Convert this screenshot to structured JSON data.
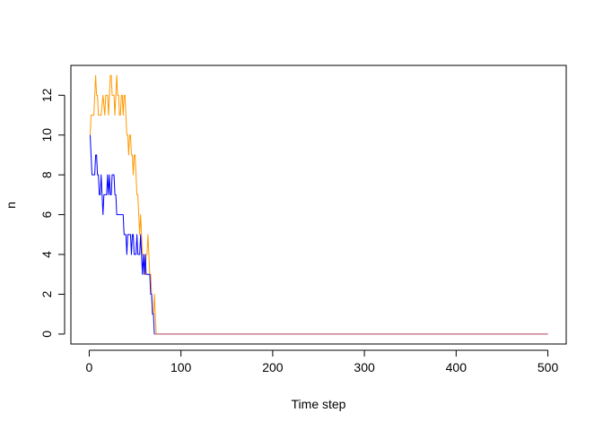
{
  "chart_data": {
    "type": "line",
    "title": "",
    "xlabel": "Time step",
    "ylabel": "n",
    "xlim": [
      -20,
      520
    ],
    "ylim": [
      -0.5,
      13.5
    ],
    "x_ticks": [
      0,
      100,
      200,
      300,
      400,
      500
    ],
    "y_ticks": [
      0,
      2,
      4,
      6,
      8,
      10,
      12
    ],
    "grid": false,
    "legend": "none",
    "series": [
      {
        "color": "#ff9900",
        "points": [
          [
            1,
            10
          ],
          [
            2,
            11
          ],
          [
            4,
            11
          ],
          [
            5,
            11
          ],
          [
            6,
            12
          ],
          [
            7,
            13
          ],
          [
            8,
            12
          ],
          [
            9,
            12
          ],
          [
            10,
            11
          ],
          [
            12,
            11
          ],
          [
            13,
            11
          ],
          [
            15,
            12
          ],
          [
            17,
            11
          ],
          [
            18,
            12
          ],
          [
            20,
            12
          ],
          [
            21,
            11
          ],
          [
            22,
            12
          ],
          [
            23,
            13
          ],
          [
            24,
            13
          ],
          [
            25,
            12
          ],
          [
            26,
            12
          ],
          [
            27,
            12
          ],
          [
            28,
            11
          ],
          [
            29,
            12
          ],
          [
            30,
            13
          ],
          [
            31,
            12
          ],
          [
            32,
            12
          ],
          [
            33,
            11
          ],
          [
            34,
            11
          ],
          [
            35,
            12
          ],
          [
            36,
            12
          ],
          [
            37,
            11
          ],
          [
            38,
            12
          ],
          [
            39,
            12
          ],
          [
            40,
            11
          ],
          [
            41,
            10
          ],
          [
            42,
            10
          ],
          [
            43,
            9
          ],
          [
            44,
            10
          ],
          [
            45,
            10
          ],
          [
            46,
            9
          ],
          [
            47,
            9
          ],
          [
            48,
            8
          ],
          [
            49,
            9
          ],
          [
            50,
            9
          ],
          [
            51,
            8
          ],
          [
            52,
            7
          ],
          [
            53,
            7
          ],
          [
            54,
            6
          ],
          [
            55,
            5
          ],
          [
            56,
            6
          ],
          [
            57,
            5
          ],
          [
            58,
            4
          ],
          [
            59,
            4
          ],
          [
            60,
            3
          ],
          [
            61,
            3
          ],
          [
            62,
            4
          ],
          [
            63,
            4
          ],
          [
            64,
            5
          ],
          [
            65,
            4
          ],
          [
            66,
            3
          ],
          [
            67,
            3
          ],
          [
            68,
            2
          ],
          [
            69,
            1
          ],
          [
            70,
            1
          ],
          [
            71,
            2
          ],
          [
            72,
            1
          ],
          [
            73,
            0
          ],
          [
            500,
            0
          ]
        ]
      },
      {
        "color": "#0000ff",
        "points": [
          [
            1,
            10
          ],
          [
            2,
            9
          ],
          [
            3,
            8
          ],
          [
            5,
            8
          ],
          [
            6,
            8
          ],
          [
            7,
            9
          ],
          [
            8,
            9
          ],
          [
            9,
            8
          ],
          [
            10,
            8
          ],
          [
            11,
            7
          ],
          [
            12,
            7
          ],
          [
            13,
            8
          ],
          [
            14,
            7
          ],
          [
            15,
            6
          ],
          [
            16,
            7
          ],
          [
            17,
            7
          ],
          [
            18,
            7
          ],
          [
            19,
            7
          ],
          [
            20,
            8
          ],
          [
            21,
            7
          ],
          [
            22,
            8
          ],
          [
            23,
            7
          ],
          [
            24,
            7
          ],
          [
            25,
            8
          ],
          [
            26,
            8
          ],
          [
            27,
            8
          ],
          [
            28,
            7
          ],
          [
            29,
            7
          ],
          [
            30,
            6
          ],
          [
            32,
            6
          ],
          [
            34,
            6
          ],
          [
            36,
            6
          ],
          [
            37,
            6
          ],
          [
            38,
            5
          ],
          [
            40,
            5
          ],
          [
            41,
            4
          ],
          [
            42,
            5
          ],
          [
            44,
            5
          ],
          [
            45,
            5
          ],
          [
            46,
            4
          ],
          [
            47,
            5
          ],
          [
            48,
            5
          ],
          [
            49,
            4
          ],
          [
            50,
            4
          ],
          [
            51,
            4
          ],
          [
            52,
            5
          ],
          [
            53,
            4
          ],
          [
            55,
            4
          ],
          [
            56,
            5
          ],
          [
            57,
            4
          ],
          [
            58,
            3
          ],
          [
            59,
            4
          ],
          [
            60,
            3
          ],
          [
            61,
            4
          ],
          [
            62,
            3
          ],
          [
            65,
            3
          ],
          [
            66,
            3
          ],
          [
            67,
            2
          ],
          [
            68,
            2
          ],
          [
            69,
            1
          ],
          [
            70,
            1
          ],
          [
            71,
            0
          ],
          [
            500,
            0
          ]
        ]
      },
      {
        "color": "#e07a73",
        "points": [
          [
            71,
            0
          ],
          [
            500,
            0
          ]
        ]
      }
    ]
  }
}
